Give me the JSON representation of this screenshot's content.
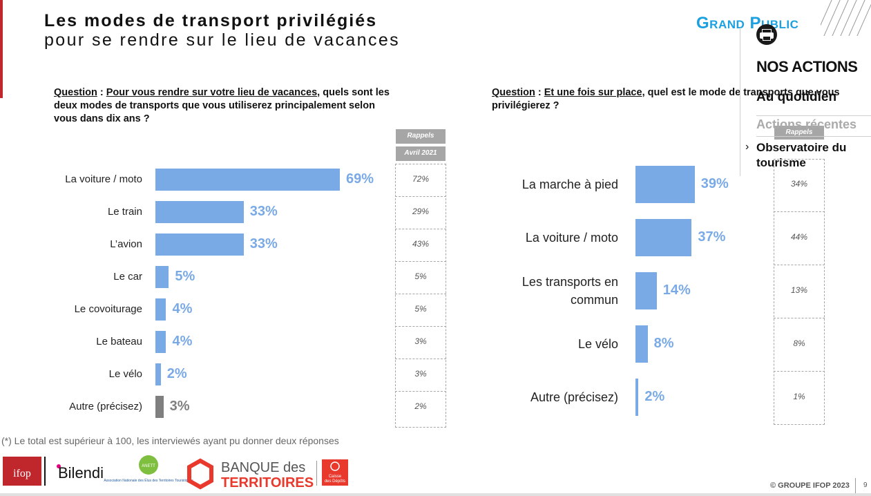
{
  "slide": {
    "title_line1": "Les modes de transport privilégiés",
    "title_line2": "pour se rendre sur le lieu de vacances",
    "audience_tag": "Grand Public",
    "footnote": "(*) Le total est supérieur à 100, les interviewés ayant pu donner deux réponses",
    "copyright": "© GROUPE IFOP 2023",
    "page_number": "9"
  },
  "side_panel": {
    "print_icon": "printer-icon",
    "title": "NOS ACTIONS",
    "items": [
      "Au quotidien",
      "Actions récentes",
      "Observatoire du tourisme"
    ]
  },
  "logos": {
    "ifop": "ifop",
    "bilendi": "Bilendi",
    "anett_caption": "Association Nationale des Élus des Territoires Touristiques",
    "anett_short": "ANETT",
    "banque_line1": "BANQUE des",
    "banque_line2": "TERRITOIRES",
    "caisse_line1": "Caisse",
    "caisse_line2": "des Dépôts"
  },
  "chart_data": [
    {
      "type": "bar",
      "orientation": "horizontal",
      "question_label": "Question",
      "question_underlined": "Pour vous rendre sur votre lieu de vacances",
      "question_rest": ", quels sont les deux modes de transports que vous utiliserez principalement selon vous dans dix ans ?",
      "categories": [
        "La voiture / moto",
        "Le train",
        "L’avion",
        "Le car",
        "Le covoiturage",
        "Le bateau",
        "Le vélo",
        "Autre (précisez)"
      ],
      "values": [
        69,
        33,
        33,
        5,
        4,
        4,
        2,
        3
      ],
      "value_labels": [
        "69%",
        "33%",
        "33%",
        "5%",
        "4%",
        "4%",
        "2%",
        "3%"
      ],
      "bar_colors": [
        "#7aaae6",
        "#7aaae6",
        "#7aaae6",
        "#7aaae6",
        "#7aaae6",
        "#7aaae6",
        "#7aaae6",
        "#7f7f7f"
      ],
      "label_colors": [
        "#7aaae6",
        "#7aaae6",
        "#7aaae6",
        "#7aaae6",
        "#7aaae6",
        "#7aaae6",
        "#7aaae6",
        "#7f7f7f"
      ],
      "rappels_header": "Rappels",
      "rappels_subheader": "Avril 2021",
      "rappels": [
        "72%",
        "29%",
        "43%",
        "5%",
        "5%",
        "3%",
        "3%",
        "2%"
      ]
    },
    {
      "type": "bar",
      "orientation": "horizontal",
      "question_label": "Question",
      "question_underlined": "Et une fois sur place",
      "question_rest": ", quel est le mode de transports que vous privilégierez ?",
      "categories": [
        "La marche à pied",
        "La voiture / moto",
        "Les transports en commun",
        "Le vélo",
        "Autre (précisez)"
      ],
      "values": [
        39,
        37,
        14,
        8,
        2
      ],
      "value_labels": [
        "39%",
        "37%",
        "14%",
        "8%",
        "2%"
      ],
      "bar_colors": [
        "#7aaae6",
        "#7aaae6",
        "#7aaae6",
        "#7aaae6",
        "#7aaae6"
      ],
      "label_colors": [
        "#7aaae6",
        "#7aaae6",
        "#7aaae6",
        "#7aaae6",
        "#7aaae6"
      ],
      "rappels_header": "Rappels",
      "rappels": [
        "34%",
        "44%",
        "13%",
        "8%",
        "1%"
      ]
    }
  ]
}
